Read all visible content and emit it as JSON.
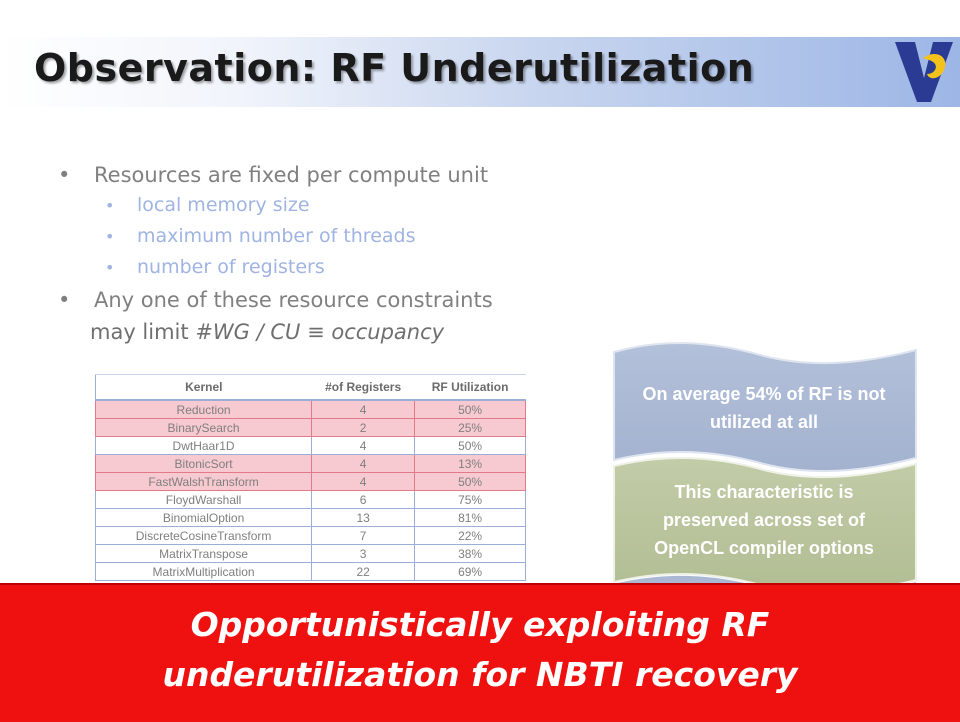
{
  "title": "Observation: RF Underutilization",
  "bullets": {
    "main1": "Resources are fixed per compute unit",
    "sub": [
      "local memory size",
      "maximum number of threads",
      "number of registers"
    ],
    "main2": "Any one of these resource constraints",
    "cont_prefix": "may limit ",
    "cont_em": "#WG / CU ≡ occupancy"
  },
  "table": {
    "headers": [
      "Kernel",
      "#of Registers",
      "RF Utilization"
    ],
    "rows": [
      {
        "kernel": "Reduction",
        "regs": "4",
        "util": "50%",
        "highlight": true
      },
      {
        "kernel": "BinarySearch",
        "regs": "2",
        "util": "25%",
        "highlight": true
      },
      {
        "kernel": "DwtHaar1D",
        "regs": "4",
        "util": "50%",
        "highlight": false
      },
      {
        "kernel": "BitonicSort",
        "regs": "4",
        "util": "13%",
        "highlight": true
      },
      {
        "kernel": "FastWalshTransform",
        "regs": "4",
        "util": "50%",
        "highlight": true
      },
      {
        "kernel": "FloydWarshall",
        "regs": "6",
        "util": "75%",
        "highlight": false
      },
      {
        "kernel": "BinomialOption",
        "regs": "13",
        "util": "81%",
        "highlight": false
      },
      {
        "kernel": "DiscreteCosineTransform",
        "regs": "7",
        "util": "22%",
        "highlight": false
      },
      {
        "kernel": "MatrixTranspose",
        "regs": "3",
        "util": "38%",
        "highlight": false
      },
      {
        "kernel": "MatrixMultiplication",
        "regs": "22",
        "util": "69%",
        "highlight": false
      }
    ]
  },
  "callouts": {
    "first": [
      "On average 54% of RF is not",
      "utilized at all"
    ],
    "second": [
      "This characteristic is",
      "preserved across set of",
      "OpenCL compiler options"
    ]
  },
  "banner": {
    "line1": "Opportunistically exploiting RF",
    "line2": "underutilization for NBTI recovery"
  },
  "colors": {
    "accent_blue": "#9fb4e2",
    "flag_blue": "#aab8d4",
    "flag_green": "#b8c49c",
    "banner_red": "#ef1010",
    "highlight_pink": "#f7c9d0"
  }
}
